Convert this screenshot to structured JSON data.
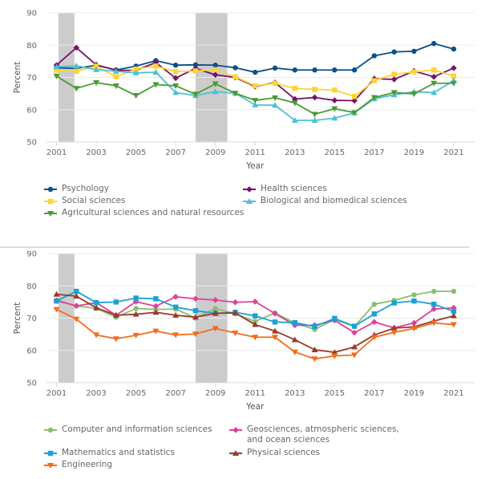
{
  "chart_data": [
    {
      "type": "line",
      "title": "",
      "xlabel": "Year",
      "ylabel": "Percent",
      "ylim": [
        50,
        90
      ],
      "yticks": [
        50,
        60,
        70,
        80,
        90
      ],
      "xticks": [
        2001,
        2003,
        2005,
        2007,
        2009,
        2011,
        2013,
        2015,
        2017,
        2019,
        2021
      ],
      "grid": true,
      "shaded_periods": [
        [
          2001.1,
          2001.9
        ],
        [
          2008,
          2009.6
        ]
      ],
      "legend_position": "bottom",
      "x": [
        2001,
        2002,
        2003,
        2004,
        2005,
        2006,
        2007,
        2008,
        2009,
        2010,
        2011,
        2012,
        2013,
        2014,
        2015,
        2016,
        2017,
        2018,
        2019,
        2020,
        2021
      ],
      "series": [
        {
          "name": "Psychology",
          "color": "#0d4f8b",
          "marker": "circle",
          "values": [
            73.0,
            72.8,
            73.8,
            72.3,
            73.5,
            75.2,
            73.8,
            73.9,
            73.8,
            73.0,
            71.6,
            72.9,
            72.3,
            72.3,
            72.3,
            72.3,
            76.7,
            77.9,
            78.1,
            80.5,
            78.8
          ]
        },
        {
          "name": "Health sciences",
          "color": "#76126a",
          "marker": "diamond",
          "values": [
            73.8,
            79.2,
            73.9,
            72.2,
            72.2,
            74.6,
            69.8,
            72.8,
            70.8,
            70.0,
            67.2,
            68.4,
            63.3,
            63.8,
            62.9,
            62.8,
            69.6,
            69.4,
            72.0,
            70.2,
            72.9
          ]
        },
        {
          "name": "Social sciences",
          "color": "#fcd436",
          "marker": "square",
          "values": [
            72.2,
            71.9,
            73.5,
            70.2,
            72.6,
            73.5,
            71.8,
            72.0,
            72.4,
            70.2,
            67.4,
            68.2,
            66.6,
            66.3,
            66.1,
            64.1,
            69.0,
            71.0,
            71.7,
            72.3,
            70.4
          ]
        },
        {
          "name": "Biological and biomedical sciences",
          "color": "#4fc0d5",
          "marker": "triangle-up",
          "values": [
            73.3,
            73.6,
            72.4,
            71.9,
            71.4,
            71.6,
            65.3,
            64.4,
            65.6,
            65.1,
            61.5,
            61.4,
            56.7,
            56.7,
            57.4,
            59.0,
            63.4,
            64.6,
            65.6,
            65.3,
            69.0
          ]
        },
        {
          "name": "Agricultural sciences and natural resources",
          "color": "#4a9a34",
          "marker": "triangle-down",
          "values": [
            70.4,
            66.6,
            68.4,
            67.4,
            64.4,
            67.8,
            67.4,
            64.8,
            68.0,
            65.1,
            62.9,
            63.7,
            62.1,
            58.6,
            60.3,
            59.1,
            63.8,
            65.3,
            64.9,
            68.2,
            68.2
          ]
        }
      ]
    },
    {
      "type": "line",
      "title": "",
      "xlabel": "Year",
      "ylabel": "Percent",
      "ylim": [
        50,
        90
      ],
      "yticks": [
        50,
        60,
        70,
        80,
        90
      ],
      "xticks": [
        2001,
        2003,
        2005,
        2007,
        2009,
        2011,
        2013,
        2015,
        2017,
        2019,
        2021
      ],
      "grid": true,
      "shaded_periods": [
        [
          2001.1,
          2001.9
        ],
        [
          2008,
          2009.6
        ]
      ],
      "legend_position": "bottom",
      "x": [
        2001,
        2002,
        2003,
        2004,
        2005,
        2006,
        2007,
        2008,
        2009,
        2010,
        2011,
        2012,
        2013,
        2014,
        2015,
        2016,
        2017,
        2018,
        2019,
        2020,
        2021
      ],
      "series": [
        {
          "name": "Computer and information sciences",
          "color": "#8abf6a",
          "marker": "circle",
          "values": [
            75.3,
            73.8,
            73.0,
            70.3,
            73.0,
            72.7,
            72.8,
            70.0,
            73.0,
            71.3,
            69.0,
            71.6,
            68.5,
            66.5,
            69.6,
            67.4,
            74.3,
            75.5,
            77.2,
            78.3,
            78.3
          ]
        },
        {
          "name": "Geosciences, atmospheric sciences, and ocean sciences",
          "color": "#e0409a",
          "marker": "diamond",
          "values": [
            75.5,
            73.8,
            74.8,
            70.9,
            75.1,
            73.7,
            76.6,
            76.0,
            75.6,
            74.9,
            75.1,
            71.4,
            67.8,
            67.8,
            69.3,
            65.5,
            68.8,
            67.0,
            68.5,
            72.8,
            73.2
          ]
        },
        {
          "name": "Mathematics and statistics",
          "color": "#1aa1d6",
          "marker": "square",
          "values": [
            75.3,
            78.3,
            74.8,
            75.0,
            76.2,
            76.0,
            73.4,
            72.3,
            71.5,
            71.8,
            70.7,
            68.8,
            68.6,
            67.4,
            69.9,
            67.5,
            71.3,
            74.7,
            75.3,
            74.3,
            72.1
          ]
        },
        {
          "name": "Physical sciences",
          "color": "#9a3a2a",
          "marker": "triangle-up",
          "values": [
            77.4,
            76.8,
            73.2,
            70.9,
            71.2,
            71.8,
            70.9,
            70.3,
            71.5,
            71.6,
            68.0,
            66.0,
            63.3,
            60.2,
            59.4,
            61.1,
            64.8,
            66.9,
            67.3,
            69.1,
            70.7
          ]
        },
        {
          "name": "Engineering",
          "color": "#f26c1c",
          "marker": "triangle-down",
          "values": [
            72.7,
            69.7,
            64.8,
            63.6,
            64.7,
            66.0,
            64.8,
            65.1,
            66.8,
            65.4,
            64.1,
            64.1,
            59.5,
            57.4,
            58.3,
            58.6,
            64.1,
            65.6,
            66.8,
            68.5,
            68.0
          ]
        }
      ]
    }
  ]
}
